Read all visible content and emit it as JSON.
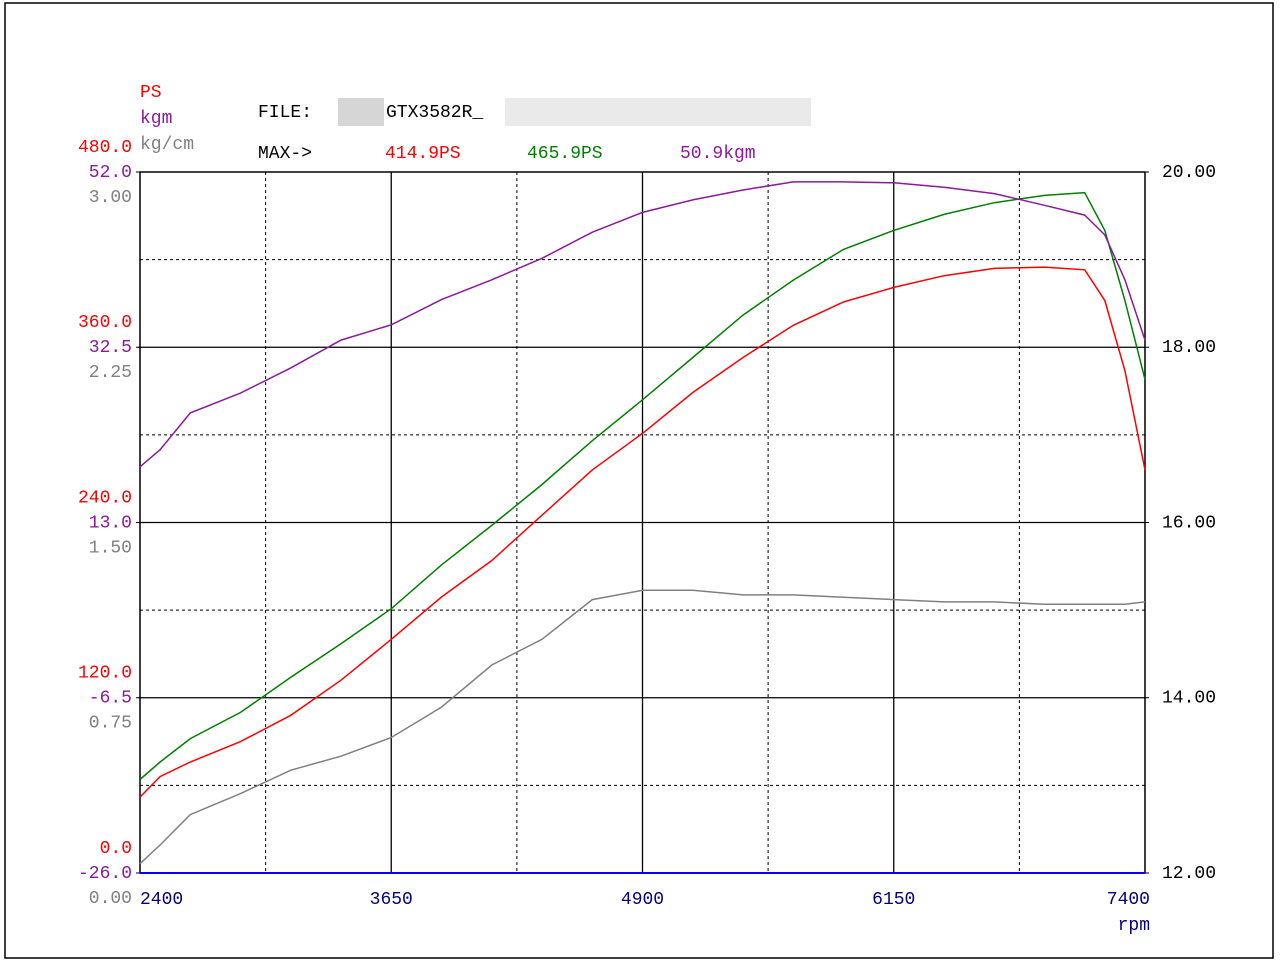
{
  "chart_data": {
    "type": "line",
    "annotations": {
      "file_label": "FILE:",
      "file_name": "GTX3582R_",
      "max_label": "MAX->",
      "max_values": [
        "414.9PS",
        "465.9PS",
        "50.9kgm"
      ],
      "max_colors": [
        "#ff0000",
        "#008000",
        "#8b1a9b"
      ]
    },
    "xlabel": "rpm",
    "x": [
      2400,
      2500,
      2650,
      2900,
      3150,
      3400,
      3650,
      3900,
      4150,
      4400,
      4650,
      4900,
      5150,
      5400,
      5650,
      5900,
      6150,
      6400,
      6650,
      6900,
      7100,
      7200,
      7300,
      7400
    ],
    "xlim": [
      2400,
      7400
    ],
    "xticks": [
      2400,
      3650,
      4900,
      6150,
      7400
    ],
    "xminor": [
      3025,
      4275,
      5525,
      6775
    ],
    "ylabel": "PS",
    "ycolor": "#ff0000",
    "ylim": [
      0,
      480
    ],
    "yticks": [
      {
        "value": 0,
        "label": "0.0"
      },
      {
        "value": 120,
        "label": "120.0"
      },
      {
        "value": 240,
        "label": "240.0"
      },
      {
        "value": 360,
        "label": "360.0"
      },
      {
        "value": 480,
        "label": "480.0"
      }
    ],
    "yminor": [
      60,
      180,
      300,
      420
    ],
    "y2lim": [
      12,
      20
    ],
    "y2ticks": [
      {
        "value": 12,
        "label": "12.00"
      },
      {
        "value": 14,
        "label": "14.00"
      },
      {
        "value": 16,
        "label": "16.00"
      },
      {
        "value": 18,
        "label": "18.00"
      },
      {
        "value": 20,
        "label": "20.00"
      }
    ],
    "y3label": "kgm",
    "y3color": "#8b1a9b",
    "y3lim": [
      -26,
      52
    ],
    "y3ticks": [
      {
        "value": -26,
        "label": "-26.0"
      },
      {
        "value": -6.5,
        "label": "-6.5"
      },
      {
        "value": 13,
        "label": "13.0"
      },
      {
        "value": 32.5,
        "label": "32.5"
      },
      {
        "value": 52,
        "label": "52.0"
      }
    ],
    "y4label": "kg/cm",
    "y4color": "#808080",
    "y4lim": [
      0,
      3
    ],
    "y4ticks": [
      {
        "value": 0,
        "label": "0.00"
      },
      {
        "value": 0.75,
        "label": "0.75"
      },
      {
        "value": 1.5,
        "label": "1.50"
      },
      {
        "value": 2.25,
        "label": "2.25"
      },
      {
        "value": 3,
        "label": "3.00"
      }
    ],
    "series": [
      {
        "color": "#ff0000",
        "axis": "y",
        "values": [
          52,
          66,
          76,
          90,
          108,
          132,
          160,
          189,
          214,
          245,
          276,
          301,
          329,
          353,
          375,
          391,
          401,
          409,
          414,
          414.9,
          413,
          392,
          344,
          276
        ]
      },
      {
        "color": "#008000",
        "axis": "y",
        "values": [
          64,
          76,
          92,
          110,
          134,
          157,
          181,
          211,
          238,
          266,
          296,
          324,
          353,
          382,
          406,
          427,
          440,
          451,
          459,
          464,
          465.9,
          440,
          392,
          338
        ]
      },
      {
        "color": "#8b1a9b",
        "axis": "y3",
        "values": [
          19.2,
          21.1,
          25.2,
          27.4,
          30.2,
          33.3,
          35.0,
          37.8,
          40.0,
          42.4,
          45.3,
          47.5,
          48.9,
          50.0,
          50.9,
          50.9,
          50.8,
          50.3,
          49.6,
          48.3,
          47.2,
          45.0,
          40.0,
          33.3
        ]
      },
      {
        "color": "#808080",
        "axis": "y4",
        "values": [
          0.04,
          0.12,
          0.25,
          0.34,
          0.44,
          0.5,
          0.58,
          0.71,
          0.89,
          1.0,
          1.17,
          1.21,
          1.21,
          1.19,
          1.19,
          1.18,
          1.17,
          1.16,
          1.16,
          1.15,
          1.15,
          1.15,
          1.15,
          1.16
        ]
      }
    ]
  }
}
